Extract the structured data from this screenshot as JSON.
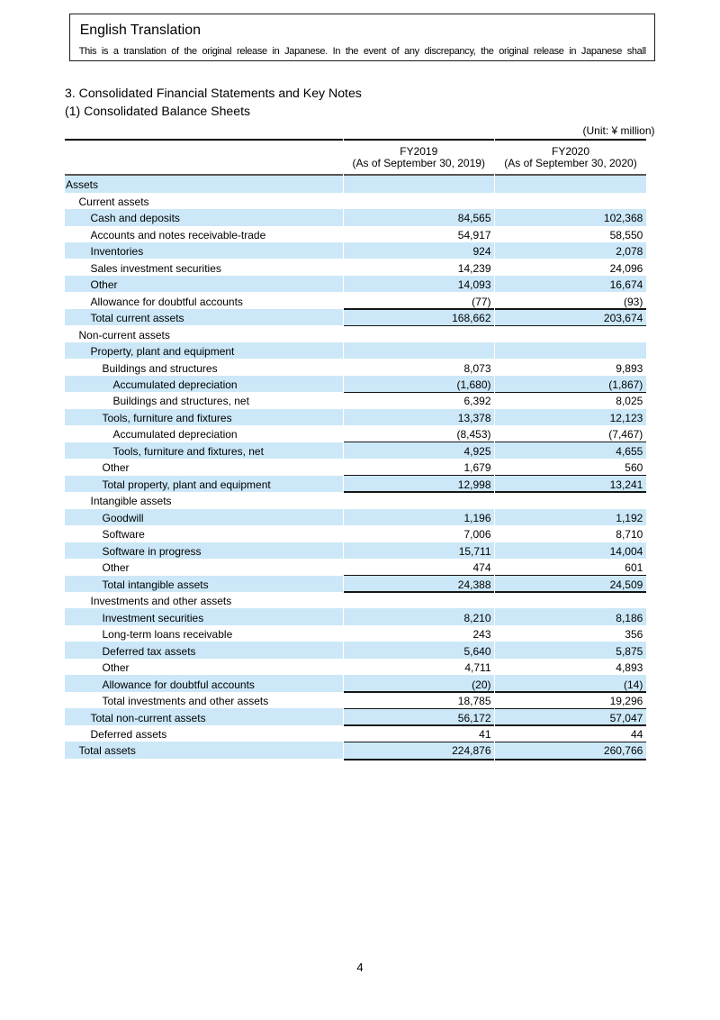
{
  "notice": {
    "title": "English Translation",
    "body": "This is a translation of the original release in Japanese. In the event of any discrepancy, the original release in Japanese shall"
  },
  "headings": {
    "section": "3. Consolidated Financial Statements and Key Notes",
    "subsection": "(1) Consolidated Balance Sheets"
  },
  "table": {
    "unit_label": "(Unit: ¥ million)",
    "columns": [
      {
        "line1": "FY2019",
        "line2": "(As of September 30, 2019)"
      },
      {
        "line1": "FY2020",
        "line2": "(As of September 30, 2020)"
      }
    ],
    "rows": [
      {
        "label": "Assets",
        "indent": 0,
        "fy2019": "",
        "fy2020": ""
      },
      {
        "label": "Current assets",
        "indent": 1,
        "fy2019": "",
        "fy2020": ""
      },
      {
        "label": "Cash and deposits",
        "indent": 2,
        "fy2019": "84,565",
        "fy2020": "102,368"
      },
      {
        "label": "Accounts and notes receivable-trade",
        "indent": 2,
        "fy2019": "54,917",
        "fy2020": "58,550"
      },
      {
        "label": "Inventories",
        "indent": 2,
        "fy2019": "924",
        "fy2020": "2,078"
      },
      {
        "label": "Sales investment securities",
        "indent": 2,
        "fy2019": "14,239",
        "fy2020": "24,096"
      },
      {
        "label": "Other",
        "indent": 2,
        "fy2019": "14,093",
        "fy2020": "16,674"
      },
      {
        "label": "Allowance for doubtful accounts",
        "indent": 2,
        "fy2019": "(77)",
        "fy2020": "(93)"
      },
      {
        "label": "Total current assets",
        "indent": 2,
        "fy2019": "168,662",
        "fy2020": "203,674",
        "line_top": true,
        "line_bottom": true
      },
      {
        "label": "Non-current assets",
        "indent": 1,
        "fy2019": "",
        "fy2020": ""
      },
      {
        "label": "Property, plant and equipment",
        "indent": 2,
        "fy2019": "",
        "fy2020": ""
      },
      {
        "label": "Buildings and structures",
        "indent": 3,
        "fy2019": "8,073",
        "fy2020": "9,893"
      },
      {
        "label": "Accumulated depreciation",
        "indent": 4,
        "fy2019": "(1,680)",
        "fy2020": "(1,867)"
      },
      {
        "label": "Buildings and structures, net",
        "indent": 4,
        "fy2019": "6,392",
        "fy2020": "8,025",
        "line_top": true
      },
      {
        "label": "Tools, furniture and fixtures",
        "indent": 3,
        "fy2019": "13,378",
        "fy2020": "12,123"
      },
      {
        "label": "Accumulated depreciation",
        "indent": 4,
        "fy2019": "(8,453)",
        "fy2020": "(7,467)"
      },
      {
        "label": "Tools, furniture and fixtures, net",
        "indent": 4,
        "fy2019": "4,925",
        "fy2020": "4,655",
        "line_top": true
      },
      {
        "label": "Other",
        "indent": 3,
        "fy2019": "1,679",
        "fy2020": "560"
      },
      {
        "label": "Total property, plant and equipment",
        "indent": 3,
        "fy2019": "12,998",
        "fy2020": "13,241",
        "line_top": true,
        "line_bottom": true
      },
      {
        "label": "Intangible assets",
        "indent": 2,
        "fy2019": "",
        "fy2020": ""
      },
      {
        "label": "Goodwill",
        "indent": 3,
        "fy2019": "1,196",
        "fy2020": "1,192"
      },
      {
        "label": "Software",
        "indent": 3,
        "fy2019": "7,006",
        "fy2020": "8,710"
      },
      {
        "label": "Software in progress",
        "indent": 3,
        "fy2019": "15,711",
        "fy2020": "14,004"
      },
      {
        "label": "Other",
        "indent": 3,
        "fy2019": "474",
        "fy2020": "601"
      },
      {
        "label": "Total intangible assets",
        "indent": 3,
        "fy2019": "24,388",
        "fy2020": "24,509",
        "line_top": true,
        "line_bottom": true
      },
      {
        "label": "Investments and other assets",
        "indent": 2,
        "fy2019": "",
        "fy2020": ""
      },
      {
        "label": "Investment securities",
        "indent": 3,
        "fy2019": "8,210",
        "fy2020": "8,186"
      },
      {
        "label": "Long-term loans receivable",
        "indent": 3,
        "fy2019": "243",
        "fy2020": "356"
      },
      {
        "label": "Deferred tax assets",
        "indent": 3,
        "fy2019": "5,640",
        "fy2020": "5,875"
      },
      {
        "label": "Other",
        "indent": 3,
        "fy2019": "4,711",
        "fy2020": "4,893"
      },
      {
        "label": "Allowance for doubtful accounts",
        "indent": 3,
        "fy2019": "(20)",
        "fy2020": "(14)"
      },
      {
        "label": "Total investments and other assets",
        "indent": 3,
        "fy2019": "18,785",
        "fy2020": "19,296",
        "line_top": true
      },
      {
        "label": "Total non-current assets",
        "indent": 2,
        "fy2019": "56,172",
        "fy2020": "57,047",
        "line_top": true
      },
      {
        "label": "Deferred assets",
        "indent": 2,
        "fy2019": "41",
        "fy2020": "44",
        "line_top": true
      },
      {
        "label": "Total assets",
        "indent": 1,
        "fy2019": "224,876",
        "fy2020": "260,766",
        "line_top": true,
        "line_bottom": true
      }
    ]
  },
  "footer": {
    "page_number": "4"
  },
  "colors": {
    "row_highlight": "#cce8f8",
    "top_rule": "#000000",
    "header_underline": "#575757",
    "total_line": "#151515"
  }
}
